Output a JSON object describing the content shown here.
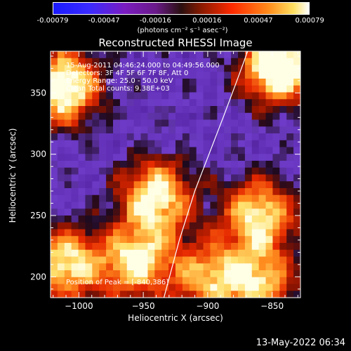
{
  "colorbar": {
    "ticks": [
      "-0.00079",
      "-0.00047",
      "-0.00016",
      "0.00016",
      "0.00047",
      "0.00079"
    ],
    "unit_label": "(photons cm⁻² s⁻¹ asec⁻²)"
  },
  "annotations": {
    "time_range": "15-Aug-2011 04:46:24.000 to 04:49:56.000",
    "detectors": "Detectors: 3F 4F 5F 6F 7F 8F, Att 0",
    "energy_range": "Energy Range: 25.0 - 50.0 keV",
    "method_counts": "Clean     Total counts: 9.38E+03",
    "peak_position": "Position of Peak = [-840,386]"
  },
  "footer": {
    "timestamp": "13-May-2022 06:34"
  },
  "chart_data": {
    "type": "heatmap",
    "title": "Reconstructed RHESSI Image",
    "xlabel": "Heliocentric X (arcsec)",
    "ylabel": "Heliocentric Y (arcsec)",
    "xlim": [
      -1022,
      -828
    ],
    "ylim": [
      183,
      384
    ],
    "x_ticks": [
      -1000,
      -950,
      -900,
      -850
    ],
    "y_ticks": [
      200,
      250,
      300,
      350
    ],
    "colorbar_range": [
      -0.00079,
      0.00079
    ],
    "limb_curve": {
      "x": [
        -934,
        -922,
        -910,
        -899,
        -888,
        -878,
        -869
      ],
      "y": [
        183,
        230,
        270,
        300,
        330,
        358,
        384
      ]
    },
    "bright_regions": [
      {
        "x": -1012,
        "y": 355,
        "level": 0.85
      },
      {
        "x": -845,
        "y": 372,
        "level": 0.95
      },
      {
        "x": -940,
        "y": 265,
        "level": 0.75
      },
      {
        "x": -955,
        "y": 212,
        "level": 0.7
      },
      {
        "x": -1010,
        "y": 210,
        "level": 0.7
      },
      {
        "x": -860,
        "y": 250,
        "level": 0.7
      },
      {
        "x": -900,
        "y": 200,
        "level": 0.55
      },
      {
        "x": -860,
        "y": 195,
        "level": 0.6
      }
    ]
  }
}
